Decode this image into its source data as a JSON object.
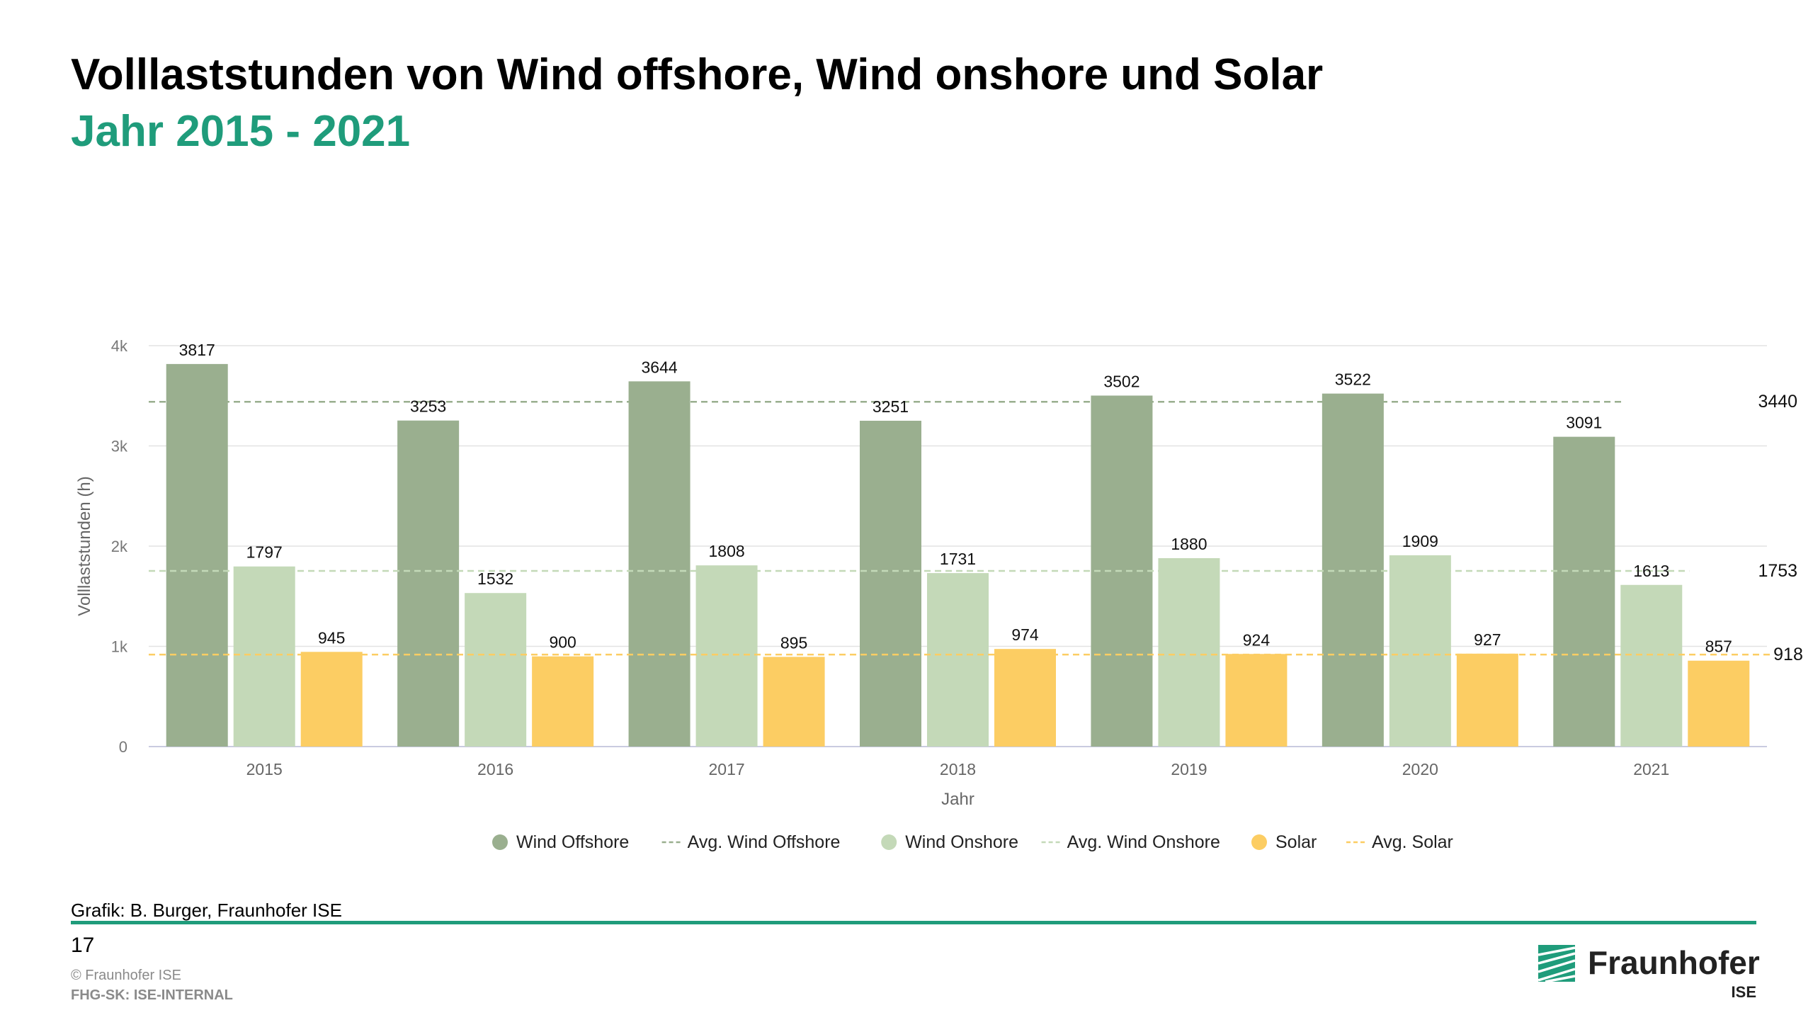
{
  "slide": {
    "title": "Volllaststunden von Wind offshore, Wind onshore und Solar",
    "subtitle": "Jahr 2015 - 2021",
    "credit": "Grafik: B. Burger, Fraunhofer ISE",
    "page_number": "17",
    "copyright": "© Fraunhofer ISE",
    "classification": "FHG-SK: ISE-INTERNAL"
  },
  "logo": {
    "name": "Fraunhofer",
    "sub": "ISE",
    "color": "#1f9c7b"
  },
  "chart_data": {
    "type": "bar",
    "xlabel": "Jahr",
    "ylabel": "Volllaststunden (h)",
    "ylim": [
      0,
      4000
    ],
    "yticks": [
      0,
      1000,
      2000,
      3000,
      4000
    ],
    "ytick_labels": [
      "0",
      "1k",
      "2k",
      "3k",
      "4k"
    ],
    "categories": [
      "2015",
      "2016",
      "2017",
      "2018",
      "2019",
      "2020",
      "2021"
    ],
    "grid": true,
    "legend_position": "bottom-center",
    "series": [
      {
        "name": "Wind Offshore",
        "color": "#9aaf8f",
        "values": [
          3817,
          3253,
          3644,
          3251,
          3502,
          3522,
          3091
        ]
      },
      {
        "name": "Wind Onshore",
        "color": "#c4d9b8",
        "values": [
          1797,
          1532,
          1808,
          1731,
          1880,
          1909,
          1613
        ]
      },
      {
        "name": "Solar",
        "color": "#fccd63",
        "values": [
          945,
          900,
          895,
          974,
          924,
          927,
          857
        ]
      }
    ],
    "averages": [
      {
        "name": "Avg. Wind Offshore",
        "value": 3440,
        "label": "3440",
        "color": "#9aaf8f"
      },
      {
        "name": "Avg. Wind Onshore",
        "value": 1753,
        "label": "1753",
        "color": "#c4d9b8"
      },
      {
        "name": "Avg. Solar",
        "value": 918,
        "label": "918",
        "color": "#fccd63"
      }
    ],
    "legend": [
      {
        "label": "Wind Offshore",
        "kind": "dot",
        "color": "#9aaf8f"
      },
      {
        "label": "Avg. Wind Offshore",
        "kind": "dash",
        "color": "#9aaf8f"
      },
      {
        "label": "Wind Onshore",
        "kind": "dot",
        "color": "#c4d9b8"
      },
      {
        "label": "Avg. Wind Onshore",
        "kind": "dash",
        "color": "#c4d9b8"
      },
      {
        "label": "Solar",
        "kind": "dot",
        "color": "#fccd63"
      },
      {
        "label": "Avg. Solar",
        "kind": "dash",
        "color": "#fccd63"
      }
    ]
  }
}
